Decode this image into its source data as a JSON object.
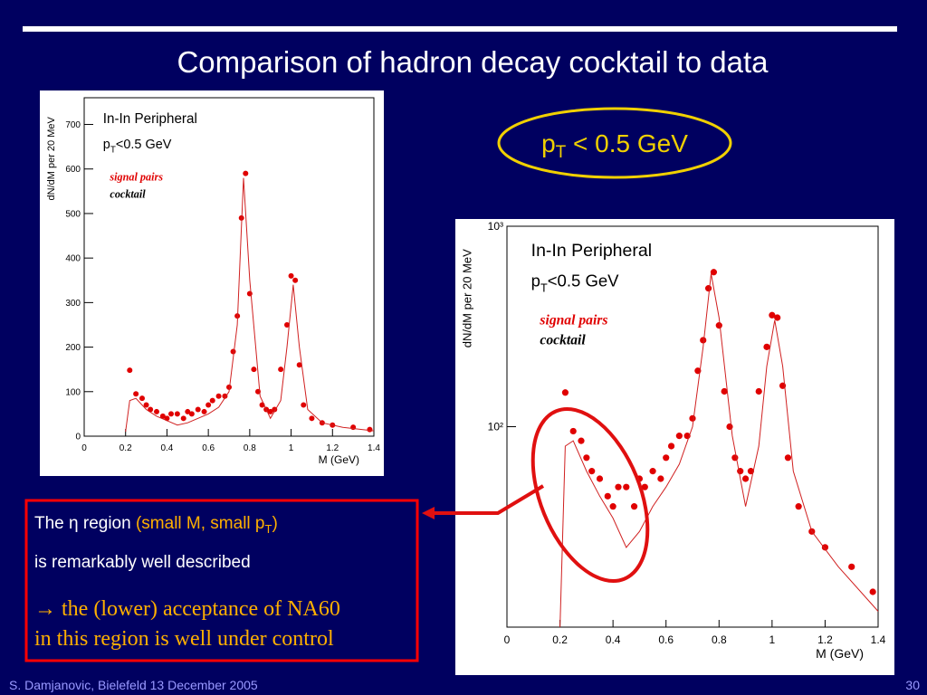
{
  "slide": {
    "title": "Comparison of hadron decay cocktail to data",
    "callout": {
      "base": "p",
      "sub": "T",
      "rest": " < 0.5 GeV"
    },
    "note": {
      "line1": {
        "a": "The η region ",
        "b": "(small M, small p",
        "sub": "T",
        "c": ")"
      },
      "line2": "is remarkably well described",
      "line3": "→ the (lower) acceptance of  NA60",
      "line4": "in this region is well under control"
    },
    "footer": {
      "left": "S. Damjanovic, Bielefeld 13 December 2005",
      "page": "30"
    }
  },
  "chart_data": [
    {
      "type": "scatter",
      "log_y": false,
      "annotations": {
        "title": "In-In Peripheral",
        "cut": {
          "base": "p",
          "sub": "T",
          "rest": "<0.5 GeV"
        }
      },
      "x_label": "M (GeV)",
      "y_label": "dN/dM per 20 MeV",
      "xlim": [
        0,
        1.4
      ],
      "xticks": [
        0,
        0.2,
        0.4,
        0.6,
        0.8,
        1,
        1.2,
        1.4
      ],
      "ylim": [
        0,
        760
      ],
      "yticks": [
        0,
        100,
        200,
        300,
        400,
        500,
        600,
        700
      ],
      "series": [
        {
          "name": "signal pairs",
          "color": "#e00000",
          "mode": "markers",
          "x": [
            0.22,
            0.25,
            0.28,
            0.3,
            0.32,
            0.35,
            0.38,
            0.4,
            0.42,
            0.45,
            0.48,
            0.5,
            0.52,
            0.55,
            0.58,
            0.6,
            0.62,
            0.65,
            0.68,
            0.7,
            0.72,
            0.74,
            0.76,
            0.78,
            0.8,
            0.82,
            0.84,
            0.86,
            0.88,
            0.9,
            0.92,
            0.95,
            0.98,
            1.0,
            1.02,
            1.04,
            1.06,
            1.1,
            1.15,
            1.2,
            1.3,
            1.38
          ],
          "values": [
            148,
            95,
            85,
            70,
            60,
            55,
            45,
            40,
            50,
            50,
            40,
            55,
            50,
            60,
            55,
            70,
            80,
            90,
            90,
            110,
            190,
            270,
            490,
            590,
            320,
            150,
            100,
            70,
            60,
            55,
            60,
            150,
            250,
            360,
            350,
            160,
            70,
            40,
            30,
            25,
            20,
            15
          ]
        },
        {
          "name": "cocktail",
          "color": "#d02020",
          "mode": "line",
          "x": [
            0.2,
            0.22,
            0.25,
            0.3,
            0.35,
            0.4,
            0.45,
            0.5,
            0.55,
            0.6,
            0.65,
            0.7,
            0.74,
            0.77,
            0.8,
            0.85,
            0.9,
            0.95,
            0.98,
            1.01,
            1.04,
            1.08,
            1.15,
            1.25,
            1.4
          ],
          "values": [
            10,
            80,
            85,
            60,
            45,
            35,
            25,
            30,
            40,
            50,
            65,
            100,
            250,
            580,
            350,
            90,
            40,
            80,
            200,
            340,
            200,
            60,
            30,
            20,
            12
          ]
        }
      ]
    },
    {
      "type": "scatter",
      "log_y": true,
      "annotations": {
        "title": "In-In Peripheral",
        "cut": {
          "base": "p",
          "sub": "T",
          "rest": "<0.5 GeV"
        }
      },
      "x_label": "M (GeV)",
      "y_label": "dN/dM per 20 MeV",
      "xlim": [
        0,
        1.4
      ],
      "xticks": [
        0,
        0.2,
        0.4,
        0.6,
        0.8,
        1,
        1.2,
        1.4
      ],
      "ylim": [
        10,
        1000
      ],
      "yticks": [
        {
          "value": 100,
          "label": "10²"
        },
        {
          "value": 1000,
          "label": "10³"
        }
      ],
      "series": [
        {
          "name": "signal pairs",
          "color": "#e00000",
          "mode": "markers",
          "x": [
            0.22,
            0.25,
            0.28,
            0.3,
            0.32,
            0.35,
            0.38,
            0.4,
            0.42,
            0.45,
            0.48,
            0.5,
            0.52,
            0.55,
            0.58,
            0.6,
            0.62,
            0.65,
            0.68,
            0.7,
            0.72,
            0.74,
            0.76,
            0.78,
            0.8,
            0.82,
            0.84,
            0.86,
            0.88,
            0.9,
            0.92,
            0.95,
            0.98,
            1.0,
            1.02,
            1.04,
            1.06,
            1.1,
            1.15,
            1.2,
            1.3,
            1.38
          ],
          "values": [
            148,
            95,
            85,
            70,
            60,
            55,
            45,
            40,
            50,
            50,
            40,
            55,
            50,
            60,
            55,
            70,
            80,
            90,
            90,
            110,
            190,
            270,
            490,
            590,
            320,
            150,
            100,
            70,
            60,
            55,
            60,
            150,
            250,
            360,
            350,
            160,
            70,
            40,
            30,
            25,
            20,
            15
          ]
        },
        {
          "name": "cocktail",
          "color": "#d02020",
          "mode": "line",
          "x": [
            0.2,
            0.22,
            0.25,
            0.3,
            0.35,
            0.4,
            0.45,
            0.5,
            0.55,
            0.6,
            0.65,
            0.7,
            0.74,
            0.77,
            0.8,
            0.85,
            0.9,
            0.95,
            0.98,
            1.01,
            1.04,
            1.08,
            1.15,
            1.25,
            1.4
          ],
          "values": [
            10,
            80,
            85,
            60,
            45,
            35,
            25,
            30,
            40,
            50,
            65,
            100,
            250,
            580,
            350,
            90,
            40,
            80,
            200,
            340,
            200,
            60,
            30,
            20,
            12
          ]
        }
      ]
    }
  ]
}
